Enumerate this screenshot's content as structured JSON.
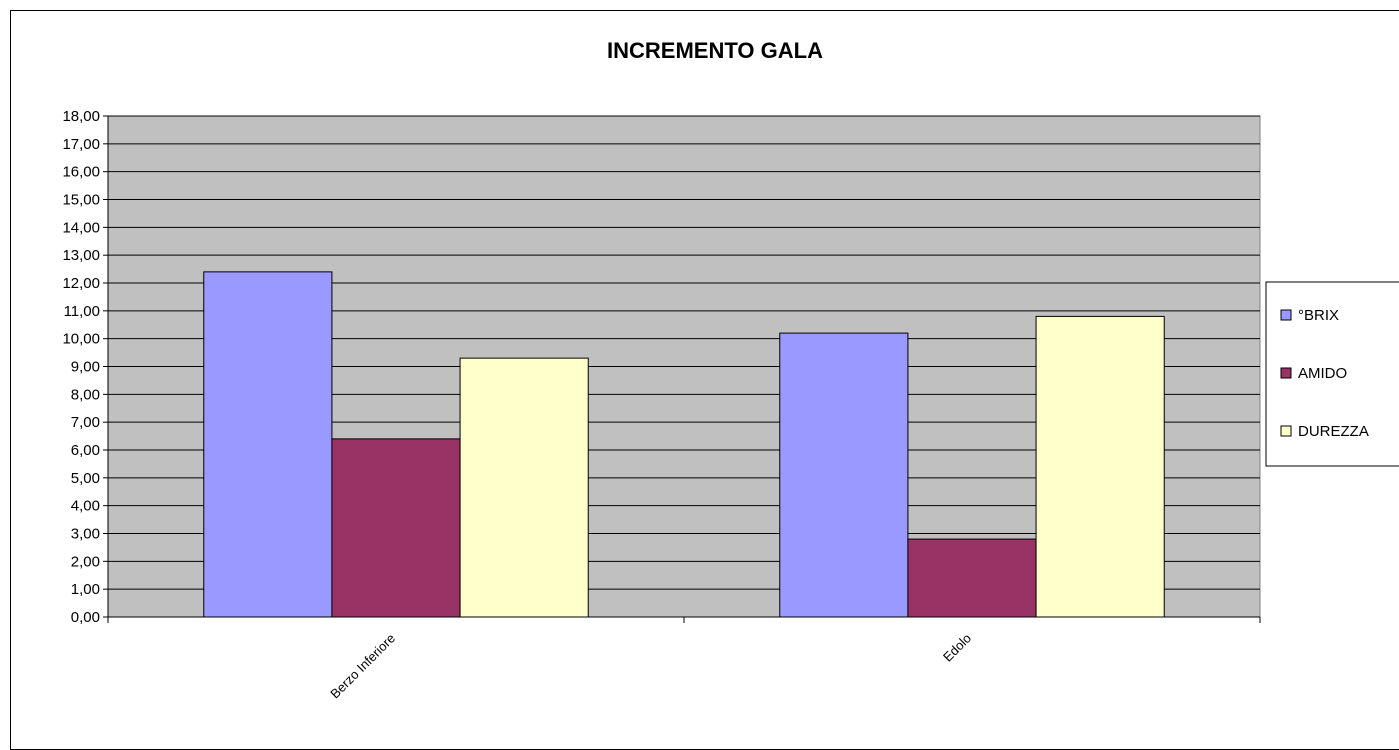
{
  "chart_data": {
    "type": "bar",
    "title": "INCREMENTO GALA",
    "xlabel": "",
    "ylabel": "",
    "categories": [
      "Berzo Inferiore",
      "Edolo"
    ],
    "series": [
      {
        "name": "°BRIX",
        "values": [
          12.4,
          10.2
        ],
        "color": "#9999ff"
      },
      {
        "name": "AMIDO",
        "values": [
          6.4,
          2.8
        ],
        "color": "#993366"
      },
      {
        "name": "DUREZZA",
        "values": [
          9.3,
          10.8
        ],
        "color": "#ffffcc"
      }
    ],
    "ylim": [
      0,
      18
    ],
    "ystep": 1,
    "ytick_labels": [
      "0,00",
      "1,00",
      "2,00",
      "3,00",
      "4,00",
      "5,00",
      "6,00",
      "7,00",
      "8,00",
      "9,00",
      "10,00",
      "11,00",
      "12,00",
      "13,00",
      "14,00",
      "15,00",
      "16,00",
      "17,00",
      "18,00"
    ],
    "grid": true,
    "plot_background": "#c0c0c0",
    "legend_position": "right"
  }
}
